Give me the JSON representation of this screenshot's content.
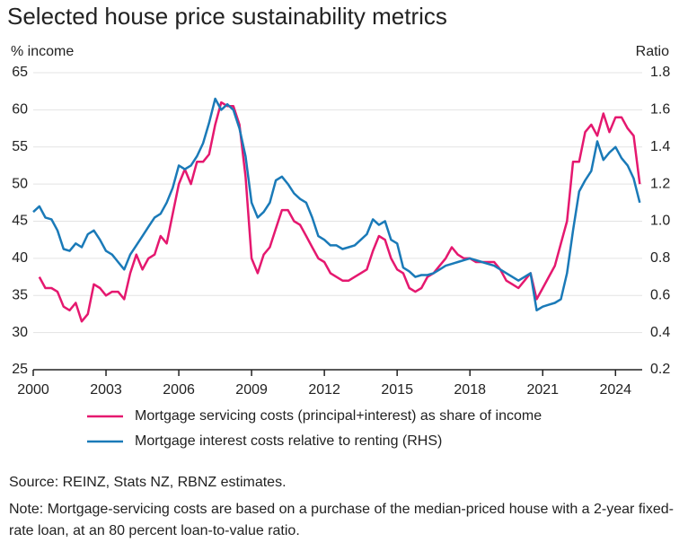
{
  "chart_data": {
    "type": "line",
    "title": "Selected house price sustainability metrics",
    "y_label": "% income",
    "y2_label": "Ratio",
    "source": "Source: REINZ, Stats NZ, RBNZ estimates.",
    "note": "Note: Mortgage-servicing costs are based on a purchase of the median-priced house with a 2-year fixed-rate loan, at an 80 percent loan-to-value ratio.",
    "x": [
      2000,
      2000.25,
      2000.5,
      2000.75,
      2001,
      2001.25,
      2001.5,
      2001.75,
      2002,
      2002.25,
      2002.5,
      2002.75,
      2003,
      2003.25,
      2003.5,
      2003.75,
      2004,
      2004.25,
      2004.5,
      2004.75,
      2005,
      2005.25,
      2005.5,
      2005.75,
      2006,
      2006.25,
      2006.5,
      2006.75,
      2007,
      2007.25,
      2007.5,
      2007.75,
      2008,
      2008.25,
      2008.5,
      2008.75,
      2009,
      2009.25,
      2009.5,
      2009.75,
      2010,
      2010.25,
      2010.5,
      2010.75,
      2011,
      2011.25,
      2011.5,
      2011.75,
      2012,
      2012.25,
      2012.5,
      2012.75,
      2013,
      2013.25,
      2013.5,
      2013.75,
      2014,
      2014.25,
      2014.5,
      2014.75,
      2015,
      2015.25,
      2015.5,
      2015.75,
      2016,
      2016.25,
      2016.5,
      2016.75,
      2017,
      2017.25,
      2017.5,
      2017.75,
      2018,
      2018.25,
      2018.5,
      2018.75,
      2019,
      2019.25,
      2019.5,
      2019.75,
      2020,
      2020.25,
      2020.5,
      2020.75,
      2021,
      2021.25,
      2021.5,
      2021.75,
      2022,
      2022.25,
      2022.5,
      2022.75,
      2023,
      2023.25,
      2023.5,
      2023.75,
      2024,
      2024.25,
      2024.5,
      2024.75,
      2025
    ],
    "series": [
      {
        "name": "Mortgage servicing costs (principal+interest) as share of income",
        "color": "#e5186f",
        "values": [
          null,
          37.5,
          36,
          36,
          35.5,
          33.5,
          33,
          34,
          31.5,
          32.5,
          36.5,
          36,
          35,
          35.5,
          35.5,
          34.5,
          38,
          40.5,
          38.5,
          40,
          40.5,
          43,
          42,
          46,
          50,
          52,
          50,
          53,
          53,
          54,
          58,
          61,
          60.5,
          60.5,
          58,
          51,
          40,
          38,
          40.5,
          41.5,
          44,
          46.5,
          46.5,
          45,
          44.5,
          43,
          41.5,
          40,
          39.5,
          38,
          37.5,
          37,
          37,
          37.5,
          38,
          38.5,
          41,
          43,
          42.5,
          40,
          38.5,
          38,
          36,
          35.5,
          36,
          37.5,
          38,
          39,
          40,
          41.5,
          40.5,
          40,
          40,
          39.5,
          39.5,
          39.5,
          39.5,
          38.5,
          37,
          36.5,
          36,
          37,
          38,
          34.5,
          36,
          37.5,
          39,
          42,
          45,
          53,
          53,
          57,
          58,
          56.5,
          59.5,
          57,
          59,
          59,
          57.5,
          56.5,
          50
        ]
      },
      {
        "name": "Mortgage interest costs relative to renting (RHS)",
        "color": "#1a7ab8",
        "axis": "y2",
        "values": [
          1.05,
          1.08,
          1.02,
          1.01,
          0.95,
          0.85,
          0.84,
          0.88,
          0.86,
          0.93,
          0.95,
          0.9,
          0.84,
          0.82,
          0.78,
          0.74,
          0.82,
          0.87,
          0.92,
          0.97,
          1.02,
          1.04,
          1.1,
          1.18,
          1.3,
          1.28,
          1.3,
          1.35,
          1.42,
          1.53,
          1.66,
          1.6,
          1.63,
          1.6,
          1.5,
          1.35,
          1.1,
          1.02,
          1.05,
          1.1,
          1.22,
          1.24,
          1.2,
          1.15,
          1.12,
          1.1,
          1.02,
          0.92,
          0.9,
          0.87,
          0.87,
          0.85,
          0.86,
          0.87,
          0.9,
          0.93,
          1.01,
          0.98,
          1,
          0.9,
          0.88,
          0.75,
          0.73,
          0.7,
          0.71,
          0.71,
          0.72,
          0.74,
          0.76,
          0.77,
          0.78,
          0.79,
          0.8,
          0.79,
          0.78,
          0.77,
          0.76,
          0.74,
          0.72,
          0.7,
          0.68,
          0.7,
          0.72,
          0.52,
          0.54,
          0.55,
          0.56,
          0.58,
          0.72,
          0.95,
          1.16,
          1.22,
          1.27,
          1.43,
          1.33,
          1.37,
          1.4,
          1.34,
          1.3,
          1.23,
          1.1
        ]
      }
    ],
    "xlim": [
      2000,
      2025.1
    ],
    "xticks": [
      2000,
      2003,
      2006,
      2009,
      2012,
      2015,
      2018,
      2021,
      2024
    ],
    "ylim": [
      25,
      65
    ],
    "yticks": [
      25,
      30,
      35,
      40,
      45,
      50,
      55,
      60,
      65
    ],
    "y2lim": [
      0.2,
      1.8
    ],
    "y2ticks": [
      0.2,
      0.4,
      0.6,
      0.8,
      {
        "value": 1,
        "label": "1.0"
      },
      1.2,
      1.4,
      1.6,
      1.8
    ],
    "grid": true
  }
}
